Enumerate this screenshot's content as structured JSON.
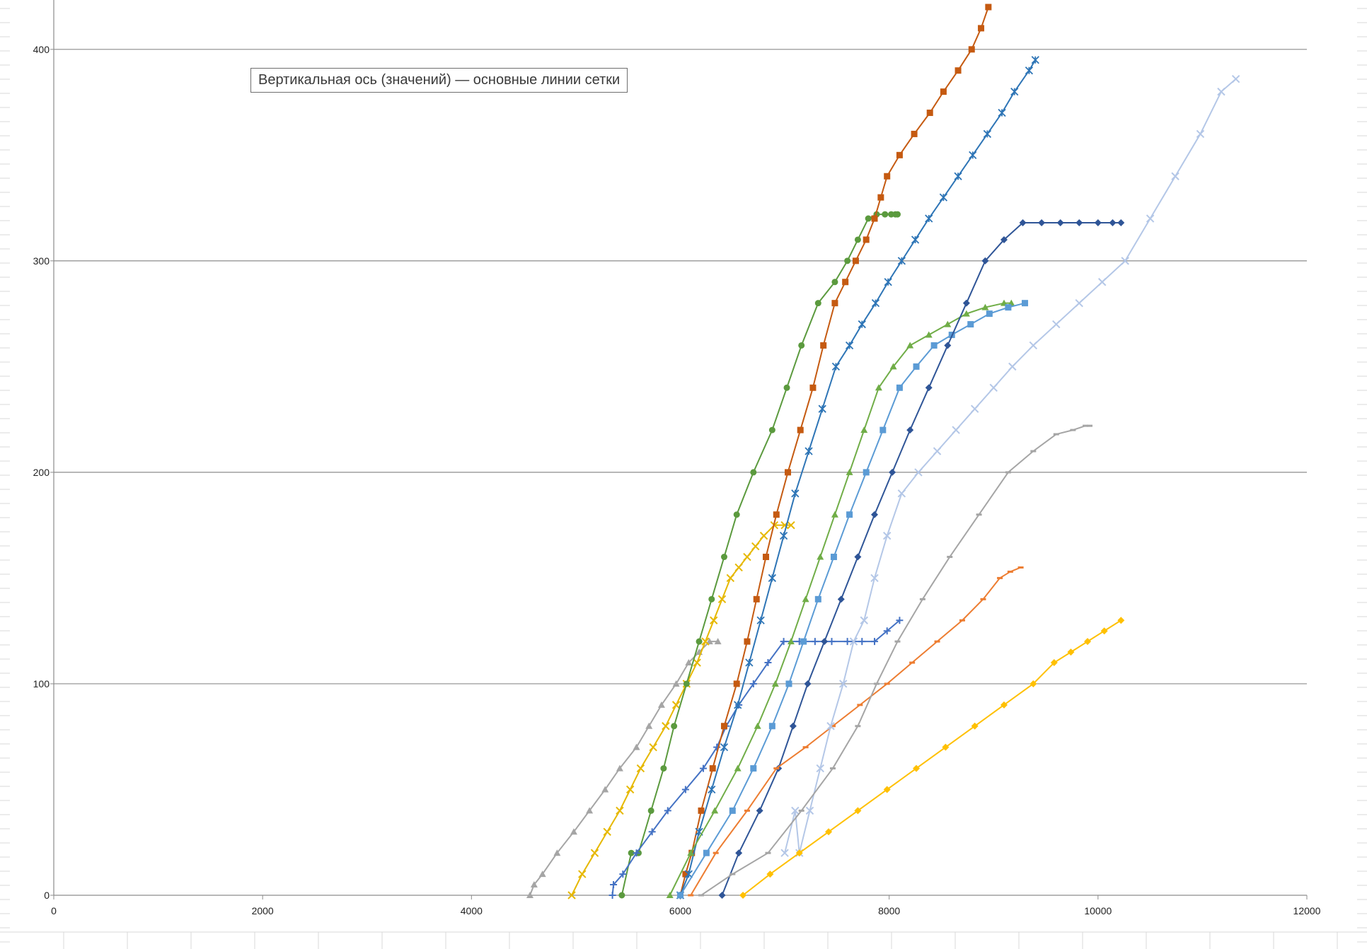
{
  "tooltip": {
    "axis_name": "Вертикальная ось (значений)",
    "element_name": "— основные линии сетки"
  },
  "colors": {
    "gridline": "#8c8c8c",
    "axis": "#8c8c8c",
    "sheet_grid": "#d9d9d9"
  },
  "chart_data": {
    "type": "scatter",
    "title": "",
    "xlabel": "",
    "ylabel": "",
    "xlim": [
      0,
      12000
    ],
    "ylim": [
      0,
      420
    ],
    "x_ticks": [
      "0",
      "2000",
      "4000",
      "6000",
      "8000",
      "10000",
      "12000"
    ],
    "y_ticks": [
      "0",
      "100",
      "200",
      "300",
      "400"
    ],
    "grid": "horizontal major gridlines",
    "legend": "none",
    "series": [
      {
        "color": "#a5a5a5",
        "marker": "triangle",
        "x": [
          4560,
          4600,
          4680,
          4820,
          4980,
          5130,
          5280,
          5420,
          5580,
          5700,
          5820,
          5960,
          6080,
          6180,
          6280,
          6360
        ],
        "y": [
          0,
          5,
          10,
          20,
          30,
          40,
          50,
          60,
          70,
          80,
          90,
          100,
          110,
          115,
          120,
          120
        ]
      },
      {
        "color": "#e6b800",
        "marker": "x",
        "x": [
          4960,
          5060,
          5180,
          5300,
          5420,
          5520,
          5620,
          5740,
          5860,
          5960,
          6060,
          6160,
          6240,
          6320,
          6400,
          6480,
          6560,
          6640,
          6720,
          6800,
          6900,
          7000,
          7060
        ],
        "y": [
          0,
          10,
          20,
          30,
          40,
          50,
          60,
          70,
          80,
          90,
          100,
          110,
          120,
          130,
          140,
          150,
          155,
          160,
          165,
          170,
          175,
          175,
          175
        ]
      },
      {
        "color": "#5b9a3e",
        "marker": "circle",
        "x": [
          5440,
          5530,
          5600,
          5720,
          5840,
          5940,
          6060,
          6180,
          6300,
          6420,
          6540,
          6700,
          6880,
          7020,
          7160,
          7320,
          7480,
          7600,
          7700,
          7800,
          7880,
          7960,
          8020,
          8060,
          8080
        ],
        "y": [
          0,
          20,
          20,
          40,
          60,
          80,
          100,
          120,
          140,
          160,
          180,
          200,
          220,
          240,
          260,
          280,
          290,
          300,
          310,
          320,
          322,
          322,
          322,
          322,
          322
        ]
      },
      {
        "color": "#4472c4",
        "marker": "plus",
        "x": [
          5350,
          5360,
          5450,
          5580,
          5730,
          5880,
          6050,
          6220,
          6350,
          6440,
          6560,
          6700,
          6840,
          6990,
          7140,
          7290,
          7450,
          7600,
          7740,
          7860,
          7980,
          8100
        ],
        "y": [
          0,
          5,
          10,
          20,
          30,
          40,
          50,
          60,
          70,
          80,
          90,
          100,
          110,
          120,
          120,
          120,
          120,
          120,
          120,
          120,
          125,
          130
        ]
      },
      {
        "color": "#c55a11",
        "marker": "square",
        "x": [
          6000,
          6050,
          6110,
          6200,
          6310,
          6420,
          6540,
          6640,
          6730,
          6820,
          6920,
          7030,
          7150,
          7270,
          7370,
          7480,
          7580,
          7680,
          7780,
          7860,
          7920,
          7980,
          8100,
          8240,
          8390,
          8520,
          8660,
          8790,
          8880,
          8950
        ],
        "y": [
          0,
          10,
          20,
          40,
          60,
          80,
          100,
          120,
          140,
          160,
          180,
          200,
          220,
          240,
          260,
          280,
          290,
          300,
          310,
          320,
          330,
          340,
          350,
          360,
          370,
          380,
          390,
          400,
          410,
          420
        ]
      },
      {
        "color": "#2e75b6",
        "marker": "asterisk",
        "x": [
          6000,
          6080,
          6180,
          6300,
          6420,
          6550,
          6660,
          6770,
          6880,
          6990,
          7100,
          7230,
          7360,
          7490,
          7620,
          7740,
          7870,
          7990,
          8120,
          8250,
          8380,
          8520,
          8660,
          8800,
          8940,
          9080,
          9200,
          9340,
          9400
        ],
        "y": [
          0,
          10,
          30,
          50,
          70,
          90,
          110,
          130,
          150,
          170,
          190,
          210,
          230,
          250,
          260,
          270,
          280,
          290,
          300,
          310,
          320,
          330,
          340,
          350,
          360,
          370,
          380,
          390,
          395
        ]
      },
      {
        "color": "#70ad47",
        "marker": "triangle",
        "x": [
          5900,
          6100,
          6330,
          6550,
          6740,
          6910,
          7060,
          7200,
          7340,
          7480,
          7620,
          7760,
          7900,
          8040,
          8200,
          8380,
          8560,
          8740,
          8920,
          9100,
          9170
        ],
        "y": [
          0,
          20,
          40,
          60,
          80,
          100,
          120,
          140,
          160,
          180,
          200,
          220,
          240,
          250,
          260,
          265,
          270,
          275,
          278,
          280,
          280
        ]
      },
      {
        "color": "#5b9bd5",
        "marker": "square",
        "x": [
          6000,
          6250,
          6500,
          6700,
          6880,
          7040,
          7180,
          7320,
          7470,
          7620,
          7780,
          7940,
          8100,
          8260,
          8430,
          8600,
          8780,
          8960,
          9140,
          9300
        ],
        "y": [
          0,
          20,
          40,
          60,
          80,
          100,
          120,
          140,
          160,
          180,
          200,
          220,
          240,
          250,
          260,
          265,
          270,
          275,
          278,
          280
        ]
      },
      {
        "color": "#2f5597",
        "marker": "diamond",
        "x": [
          6400,
          6560,
          6760,
          6940,
          7080,
          7220,
          7380,
          7540,
          7700,
          7860,
          8030,
          8200,
          8380,
          8560,
          8740,
          8920,
          9100,
          9280,
          9460,
          9640,
          9820,
          10000,
          10140,
          10220
        ],
        "y": [
          0,
          20,
          40,
          60,
          80,
          100,
          120,
          140,
          160,
          180,
          200,
          220,
          240,
          260,
          280,
          300,
          310,
          318,
          318,
          318,
          318,
          318,
          318,
          318
        ]
      },
      {
        "color": "#ed7d31",
        "marker": "dash",
        "x": [
          6100,
          6340,
          6640,
          6920,
          7200,
          7460,
          7720,
          7980,
          8220,
          8460,
          8700,
          8900,
          9060,
          9160,
          9260
        ],
        "y": [
          0,
          20,
          40,
          60,
          70,
          80,
          90,
          100,
          110,
          120,
          130,
          140,
          150,
          153,
          155
        ]
      },
      {
        "color": "#b4c7e7",
        "marker": "x",
        "x": [
          7000,
          7100,
          7140,
          7240,
          7340,
          7440,
          7560,
          7660,
          7760,
          7860,
          7980,
          8120,
          8280,
          8460,
          8640,
          8820,
          9000,
          9180,
          9380,
          9600,
          9820,
          10040,
          10260,
          10500,
          10740,
          10980,
          11180,
          11320
        ],
        "y": [
          20,
          40,
          20,
          40,
          60,
          80,
          100,
          120,
          130,
          150,
          170,
          190,
          200,
          210,
          220,
          230,
          240,
          250,
          260,
          270,
          280,
          290,
          300,
          320,
          340,
          360,
          380,
          386
        ]
      },
      {
        "color": "#a5a5a5",
        "marker": "dash",
        "x": [
          6200,
          6500,
          6840,
          7160,
          7460,
          7700,
          7880,
          8080,
          8320,
          8580,
          8860,
          9140,
          9380,
          9600,
          9760,
          9880,
          9920
        ],
        "y": [
          0,
          10,
          20,
          40,
          60,
          80,
          100,
          120,
          140,
          160,
          180,
          200,
          210,
          218,
          220,
          222,
          222
        ]
      },
      {
        "color": "#ffc000",
        "marker": "diamond",
        "x": [
          6600,
          6860,
          7140,
          7420,
          7700,
          7980,
          8260,
          8540,
          8820,
          9100,
          9380,
          9580,
          9740,
          9900,
          10060,
          10220
        ],
        "y": [
          0,
          10,
          20,
          30,
          40,
          50,
          60,
          70,
          80,
          90,
          100,
          110,
          115,
          120,
          125,
          130
        ]
      }
    ]
  }
}
